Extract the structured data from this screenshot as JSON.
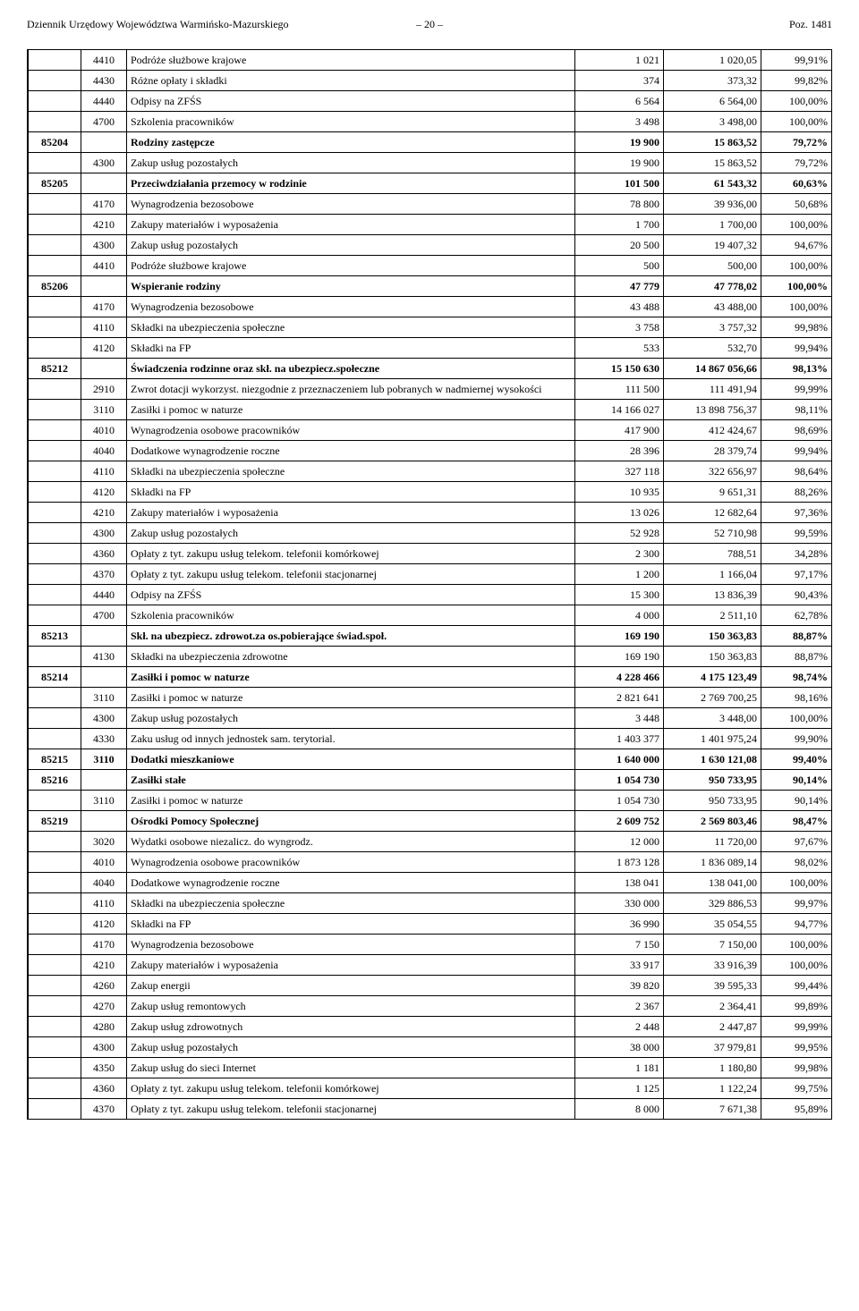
{
  "header": {
    "left": "Dziennik Urzędowy Województwa Warmińsko-Mazurskiego",
    "page": "– 20 –",
    "right": "Poz. 1481"
  },
  "rows": [
    {
      "sec": "",
      "par": "4410",
      "desc": "Podróże służbowe krajowe",
      "n1": "1 021",
      "n2": "1 020,05",
      "pct": "99,91%"
    },
    {
      "sec": "",
      "par": "4430",
      "desc": "Różne opłaty i składki",
      "n1": "374",
      "n2": "373,32",
      "pct": "99,82%"
    },
    {
      "sec": "",
      "par": "4440",
      "desc": "Odpisy na ZFŚS",
      "n1": "6 564",
      "n2": "6 564,00",
      "pct": "100,00%"
    },
    {
      "sec": "",
      "par": "4700",
      "desc": "Szkolenia pracowników",
      "n1": "3 498",
      "n2": "3 498,00",
      "pct": "100,00%"
    },
    {
      "sec": "85204",
      "par": "",
      "desc": "Rodziny zastępcze",
      "n1": "19 900",
      "n2": "15 863,52",
      "pct": "79,72%",
      "bold": true
    },
    {
      "sec": "",
      "par": "4300",
      "desc": "Zakup usług pozostałych",
      "n1": "19 900",
      "n2": "15 863,52",
      "pct": "79,72%"
    },
    {
      "sec": "85205",
      "par": "",
      "desc": "Przeciwdziałania przemocy w rodzinie",
      "n1": "101 500",
      "n2": "61 543,32",
      "pct": "60,63%",
      "bold": true
    },
    {
      "sec": "",
      "par": "4170",
      "desc": "Wynagrodzenia bezosobowe",
      "n1": "78 800",
      "n2": "39 936,00",
      "pct": "50,68%"
    },
    {
      "sec": "",
      "par": "4210",
      "desc": "Zakupy materiałów i wyposażenia",
      "n1": "1 700",
      "n2": "1 700,00",
      "pct": "100,00%"
    },
    {
      "sec": "",
      "par": "4300",
      "desc": "Zakup usług pozostałych",
      "n1": "20 500",
      "n2": "19 407,32",
      "pct": "94,67%"
    },
    {
      "sec": "",
      "par": "4410",
      "desc": "Podróże służbowe krajowe",
      "n1": "500",
      "n2": "500,00",
      "pct": "100,00%"
    },
    {
      "sec": "85206",
      "par": "",
      "desc": "Wspieranie rodziny",
      "n1": "47 779",
      "n2": "47 778,02",
      "pct": "100,00%",
      "bold": true
    },
    {
      "sec": "",
      "par": "4170",
      "desc": "Wynagrodzenia bezosobowe",
      "n1": "43 488",
      "n2": "43 488,00",
      "pct": "100,00%"
    },
    {
      "sec": "",
      "par": "4110",
      "desc": "Składki na ubezpieczenia społeczne",
      "n1": "3 758",
      "n2": "3 757,32",
      "pct": "99,98%"
    },
    {
      "sec": "",
      "par": "4120",
      "desc": "Składki na FP",
      "n1": "533",
      "n2": "532,70",
      "pct": "99,94%"
    },
    {
      "sec": "85212",
      "par": "",
      "desc": "Świadczenia rodzinne oraz skł. na ubezpiecz.społeczne",
      "n1": "15 150 630",
      "n2": "14 867 056,66",
      "pct": "98,13%",
      "bold": true
    },
    {
      "sec": "",
      "par": "2910",
      "desc": "Zwrot dotacji wykorzyst. niezgodnie z przeznaczeniem lub pobranych w nadmiernej wysokości",
      "n1": "111 500",
      "n2": "111 491,94",
      "pct": "99,99%"
    },
    {
      "sec": "",
      "par": "3110",
      "desc": "Zasiłki i pomoc w naturze",
      "n1": "14 166 027",
      "n2": "13 898 756,37",
      "pct": "98,11%"
    },
    {
      "sec": "",
      "par": "4010",
      "desc": "Wynagrodzenia osobowe pracowników",
      "n1": "417 900",
      "n2": "412 424,67",
      "pct": "98,69%"
    },
    {
      "sec": "",
      "par": "4040",
      "desc": "Dodatkowe wynagrodzenie roczne",
      "n1": "28 396",
      "n2": "28 379,74",
      "pct": "99,94%"
    },
    {
      "sec": "",
      "par": "4110",
      "desc": "Składki na ubezpieczenia społeczne",
      "n1": "327 118",
      "n2": "322 656,97",
      "pct": "98,64%"
    },
    {
      "sec": "",
      "par": "4120",
      "desc": "Składki na FP",
      "n1": "10 935",
      "n2": "9 651,31",
      "pct": "88,26%"
    },
    {
      "sec": "",
      "par": "4210",
      "desc": "Zakupy materiałów i wyposażenia",
      "n1": "13 026",
      "n2": "12 682,64",
      "pct": "97,36%"
    },
    {
      "sec": "",
      "par": "4300",
      "desc": "Zakup usług pozostałych",
      "n1": "52 928",
      "n2": "52 710,98",
      "pct": "99,59%"
    },
    {
      "sec": "",
      "par": "4360",
      "desc": "Opłaty z tyt. zakupu usług telekom. telefonii komórkowej",
      "n1": "2 300",
      "n2": "788,51",
      "pct": "34,28%"
    },
    {
      "sec": "",
      "par": "4370",
      "desc": "Opłaty z tyt. zakupu usług telekom. telefonii stacjonarnej",
      "n1": "1 200",
      "n2": "1 166,04",
      "pct": "97,17%"
    },
    {
      "sec": "",
      "par": "4440",
      "desc": "Odpisy na ZFŚS",
      "n1": "15 300",
      "n2": "13 836,39",
      "pct": "90,43%"
    },
    {
      "sec": "",
      "par": "4700",
      "desc": "Szkolenia pracowników",
      "n1": "4 000",
      "n2": "2 511,10",
      "pct": "62,78%"
    },
    {
      "sec": "85213",
      "par": "",
      "desc": "Skł. na ubezpiecz. zdrowot.za os.pobierające świad.społ.",
      "n1": "169 190",
      "n2": "150 363,83",
      "pct": "88,87%",
      "bold": true
    },
    {
      "sec": "",
      "par": "4130",
      "desc": "Składki na ubezpieczenia zdrowotne",
      "n1": "169 190",
      "n2": "150 363,83",
      "pct": "88,87%"
    },
    {
      "sec": "85214",
      "par": "",
      "desc": "Zasiłki i pomoc w naturze",
      "n1": "4 228 466",
      "n2": "4 175 123,49",
      "pct": "98,74%",
      "bold": true
    },
    {
      "sec": "",
      "par": "3110",
      "desc": "Zasiłki i pomoc w naturze",
      "n1": "2 821 641",
      "n2": "2 769 700,25",
      "pct": "98,16%"
    },
    {
      "sec": "",
      "par": "4300",
      "desc": "Zakup usług pozostałych",
      "n1": "3 448",
      "n2": "3 448,00",
      "pct": "100,00%"
    },
    {
      "sec": "",
      "par": "4330",
      "desc": "Zaku usług od innych jednostek sam. terytorial.",
      "n1": "1 403 377",
      "n2": "1 401 975,24",
      "pct": "99,90%"
    },
    {
      "sec": "85215",
      "par": "3110",
      "desc": "Dodatki mieszkaniowe",
      "n1": "1 640 000",
      "n2": "1 630 121,08",
      "pct": "99,40%",
      "bold": true
    },
    {
      "sec": "85216",
      "par": "",
      "desc": "Zasiłki stałe",
      "n1": "1 054 730",
      "n2": "950 733,95",
      "pct": "90,14%",
      "bold": true
    },
    {
      "sec": "",
      "par": "3110",
      "desc": "Zasiłki i pomoc w naturze",
      "n1": "1 054 730",
      "n2": "950 733,95",
      "pct": "90,14%"
    },
    {
      "sec": "85219",
      "par": "",
      "desc": "Ośrodki Pomocy Społecznej",
      "n1": "2 609 752",
      "n2": "2 569 803,46",
      "pct": "98,47%",
      "bold": true
    },
    {
      "sec": "",
      "par": "3020",
      "desc": "Wydatki osobowe niezalicz. do wyngrodz.",
      "n1": "12 000",
      "n2": "11 720,00",
      "pct": "97,67%"
    },
    {
      "sec": "",
      "par": "4010",
      "desc": "Wynagrodzenia osobowe pracowników",
      "n1": "1 873 128",
      "n2": "1 836 089,14",
      "pct": "98,02%"
    },
    {
      "sec": "",
      "par": "4040",
      "desc": "Dodatkowe wynagrodzenie roczne",
      "n1": "138 041",
      "n2": "138 041,00",
      "pct": "100,00%"
    },
    {
      "sec": "",
      "par": "4110",
      "desc": "Składki na ubezpieczenia społeczne",
      "n1": "330 000",
      "n2": "329 886,53",
      "pct": "99,97%"
    },
    {
      "sec": "",
      "par": "4120",
      "desc": "Składki na FP",
      "n1": "36 990",
      "n2": "35 054,55",
      "pct": "94,77%"
    },
    {
      "sec": "",
      "par": "4170",
      "desc": "Wynagrodzenia bezosobowe",
      "n1": "7 150",
      "n2": "7 150,00",
      "pct": "100,00%"
    },
    {
      "sec": "",
      "par": "4210",
      "desc": "Zakupy materiałów i wyposażenia",
      "n1": "33 917",
      "n2": "33 916,39",
      "pct": "100,00%"
    },
    {
      "sec": "",
      "par": "4260",
      "desc": "Zakup energii",
      "n1": "39 820",
      "n2": "39 595,33",
      "pct": "99,44%"
    },
    {
      "sec": "",
      "par": "4270",
      "desc": "Zakup usług remontowych",
      "n1": "2 367",
      "n2": "2 364,41",
      "pct": "99,89%"
    },
    {
      "sec": "",
      "par": "4280",
      "desc": "Zakup usług zdrowotnych",
      "n1": "2 448",
      "n2": "2 447,87",
      "pct": "99,99%"
    },
    {
      "sec": "",
      "par": "4300",
      "desc": "Zakup usług pozostałych",
      "n1": "38 000",
      "n2": "37 979,81",
      "pct": "99,95%"
    },
    {
      "sec": "",
      "par": "4350",
      "desc": "Zakup usług do sieci Internet",
      "n1": "1 181",
      "n2": "1 180,80",
      "pct": "99,98%"
    },
    {
      "sec": "",
      "par": "4360",
      "desc": "Opłaty z tyt. zakupu usług telekom. telefonii komórkowej",
      "n1": "1 125",
      "n2": "1 122,24",
      "pct": "99,75%"
    },
    {
      "sec": "",
      "par": "4370",
      "desc": "Opłaty z tyt. zakupu usług telekom. telefonii stacjonarnej",
      "n1": "8 000",
      "n2": "7 671,38",
      "pct": "95,89%"
    }
  ]
}
